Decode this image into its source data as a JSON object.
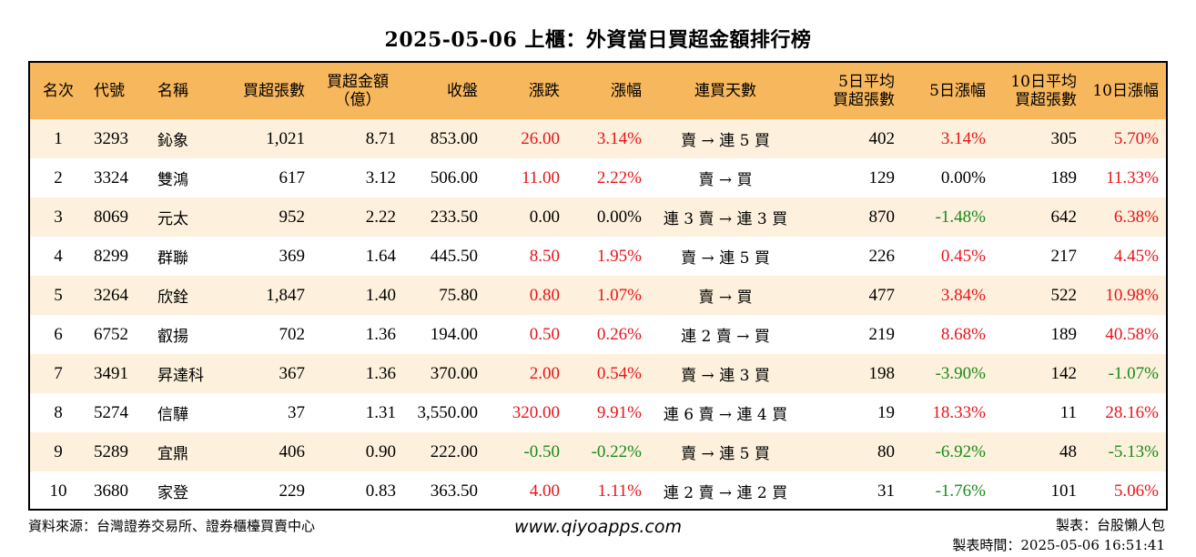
{
  "title": "2025-05-06 上櫃：外資當日買超金額排行榜",
  "columns": [
    {
      "line1": "名次",
      "line2": ""
    },
    {
      "line1": "代號",
      "line2": ""
    },
    {
      "line1": "名稱",
      "line2": ""
    },
    {
      "line1": "買超張數",
      "line2": ""
    },
    {
      "line1": "買超金額",
      "line2": "（億）"
    },
    {
      "line1": "收盤",
      "line2": ""
    },
    {
      "line1": "漲跌",
      "line2": ""
    },
    {
      "line1": "漲幅",
      "line2": ""
    },
    {
      "line1": "連買天數",
      "line2": ""
    },
    {
      "line1": "5日平均",
      "line2": "買超張數"
    },
    {
      "line1": "5日漲幅",
      "line2": ""
    },
    {
      "line1": "10日平均",
      "line2": "買超張數"
    },
    {
      "line1": "10日漲幅",
      "line2": ""
    }
  ],
  "rows": [
    {
      "rank": "1",
      "code": "3293",
      "name": "鈊象",
      "buy_lots": "1,021",
      "buy_amount": "8.71",
      "close": "853.00",
      "change": "26.00",
      "change_pct": "3.14%",
      "streak": "賣 → 連 5 買",
      "avg5": "402",
      "pct5": "3.14%",
      "avg10": "305",
      "pct10": "5.70%",
      "change_color": "red",
      "change_pct_color": "red",
      "pct5_color": "red",
      "pct10_color": "red"
    },
    {
      "rank": "2",
      "code": "3324",
      "name": "雙鴻",
      "buy_lots": "617",
      "buy_amount": "3.12",
      "close": "506.00",
      "change": "11.00",
      "change_pct": "2.22%",
      "streak": "賣 → 買",
      "avg5": "129",
      "pct5": "0.00%",
      "avg10": "189",
      "pct10": "11.33%",
      "change_color": "red",
      "change_pct_color": "red",
      "pct5_color": "black",
      "pct10_color": "red"
    },
    {
      "rank": "3",
      "code": "8069",
      "name": "元太",
      "buy_lots": "952",
      "buy_amount": "2.22",
      "close": "233.50",
      "change": "0.00",
      "change_pct": "0.00%",
      "streak": "連 3 賣 → 連 3 買",
      "avg5": "870",
      "pct5": "-1.48%",
      "avg10": "642",
      "pct10": "6.38%",
      "change_color": "black",
      "change_pct_color": "black",
      "pct5_color": "green",
      "pct10_color": "red"
    },
    {
      "rank": "4",
      "code": "8299",
      "name": "群聯",
      "buy_lots": "369",
      "buy_amount": "1.64",
      "close": "445.50",
      "change": "8.50",
      "change_pct": "1.95%",
      "streak": "賣 → 連 5 買",
      "avg5": "226",
      "pct5": "0.45%",
      "avg10": "217",
      "pct10": "4.45%",
      "change_color": "red",
      "change_pct_color": "red",
      "pct5_color": "red",
      "pct10_color": "red"
    },
    {
      "rank": "5",
      "code": "3264",
      "name": "欣銓",
      "buy_lots": "1,847",
      "buy_amount": "1.40",
      "close": "75.80",
      "change": "0.80",
      "change_pct": "1.07%",
      "streak": "賣 → 買",
      "avg5": "477",
      "pct5": "3.84%",
      "avg10": "522",
      "pct10": "10.98%",
      "change_color": "red",
      "change_pct_color": "red",
      "pct5_color": "red",
      "pct10_color": "red"
    },
    {
      "rank": "6",
      "code": "6752",
      "name": "叡揚",
      "buy_lots": "702",
      "buy_amount": "1.36",
      "close": "194.00",
      "change": "0.50",
      "change_pct": "0.26%",
      "streak": "連 2 賣 → 買",
      "avg5": "219",
      "pct5": "8.68%",
      "avg10": "189",
      "pct10": "40.58%",
      "change_color": "red",
      "change_pct_color": "red",
      "pct5_color": "red",
      "pct10_color": "red"
    },
    {
      "rank": "7",
      "code": "3491",
      "name": "昇達科",
      "buy_lots": "367",
      "buy_amount": "1.36",
      "close": "370.00",
      "change": "2.00",
      "change_pct": "0.54%",
      "streak": "賣 → 連 3 買",
      "avg5": "198",
      "pct5": "-3.90%",
      "avg10": "142",
      "pct10": "-1.07%",
      "change_color": "red",
      "change_pct_color": "red",
      "pct5_color": "green",
      "pct10_color": "green"
    },
    {
      "rank": "8",
      "code": "5274",
      "name": "信驊",
      "buy_lots": "37",
      "buy_amount": "1.31",
      "close": "3,550.00",
      "change": "320.00",
      "change_pct": "9.91%",
      "streak": "連 6 賣 → 連 4 買",
      "avg5": "19",
      "pct5": "18.33%",
      "avg10": "11",
      "pct10": "28.16%",
      "change_color": "red",
      "change_pct_color": "red",
      "pct5_color": "red",
      "pct10_color": "red"
    },
    {
      "rank": "9",
      "code": "5289",
      "name": "宜鼎",
      "buy_lots": "406",
      "buy_amount": "0.90",
      "close": "222.00",
      "change": "-0.50",
      "change_pct": "-0.22%",
      "streak": "賣 → 連 5 買",
      "avg5": "80",
      "pct5": "-6.92%",
      "avg10": "48",
      "pct10": "-5.13%",
      "change_color": "green",
      "change_pct_color": "green",
      "pct5_color": "green",
      "pct10_color": "green"
    },
    {
      "rank": "10",
      "code": "3680",
      "name": "家登",
      "buy_lots": "229",
      "buy_amount": "0.83",
      "close": "363.50",
      "change": "4.00",
      "change_pct": "1.11%",
      "streak": "連 2 賣 → 連 2 買",
      "avg5": "31",
      "pct5": "-1.76%",
      "avg10": "101",
      "pct10": "5.06%",
      "change_color": "red",
      "change_pct_color": "red",
      "pct5_color": "green",
      "pct10_color": "red"
    }
  ],
  "colors": {
    "header_bg": "#f7b75c",
    "stripe_bg": "#fdf0dc",
    "red": "#e8141b",
    "green": "#1a8a1a"
  },
  "footer": {
    "source": "資料來源：台灣證券交易所、證券櫃檯買賣中心",
    "website": "www.qiyoapps.com",
    "author": "製表：台股懶人包",
    "timestamp": "製表時間：2025-05-06 16:51:41"
  }
}
